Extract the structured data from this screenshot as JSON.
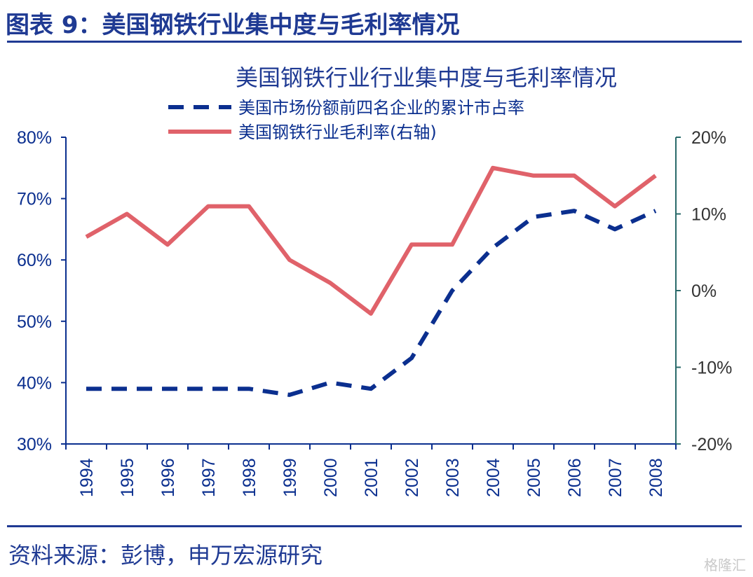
{
  "figure_title": "图表 9：美国钢铁行业集中度与毛利率情况",
  "source": "资料来源：彭博，申万宏源研究",
  "watermark": "格隆汇",
  "colors": {
    "title": "#1f3a93",
    "concentration": "#0b2f8f",
    "margin": "#e0626a",
    "right_axis": "#2a6a6a"
  },
  "chart_data": {
    "type": "line",
    "title": "美国钢铁行业行业集中度与毛利率情况",
    "x": [
      "1994",
      "1995",
      "1996",
      "1997",
      "1998",
      "1999",
      "2000",
      "2001",
      "2002",
      "2003",
      "2004",
      "2005",
      "2006",
      "2007",
      "2008"
    ],
    "y_left": {
      "ylim": [
        30,
        80
      ],
      "ticks": [
        "30%",
        "40%",
        "50%",
        "60%",
        "70%",
        "80%"
      ]
    },
    "y_right": {
      "ylim": [
        -20,
        20
      ],
      "ticks": [
        "-20%",
        "-10%",
        "0%",
        "10%",
        "20%"
      ]
    },
    "series": [
      {
        "name": "美国市场份额前四名企业的累计市占率",
        "axis": "left",
        "style": "dashed",
        "values": [
          39,
          39,
          39,
          39,
          39,
          38,
          40,
          39,
          44,
          55,
          62,
          67,
          68,
          65,
          68
        ]
      },
      {
        "name": "美国钢铁行业毛利率(右轴)",
        "axis": "right",
        "style": "solid",
        "values": [
          7,
          10,
          6,
          11,
          11,
          4,
          1,
          -3,
          6,
          6,
          16,
          15,
          15,
          11,
          15
        ]
      }
    ],
    "legend": "top-center",
    "grid": false
  }
}
